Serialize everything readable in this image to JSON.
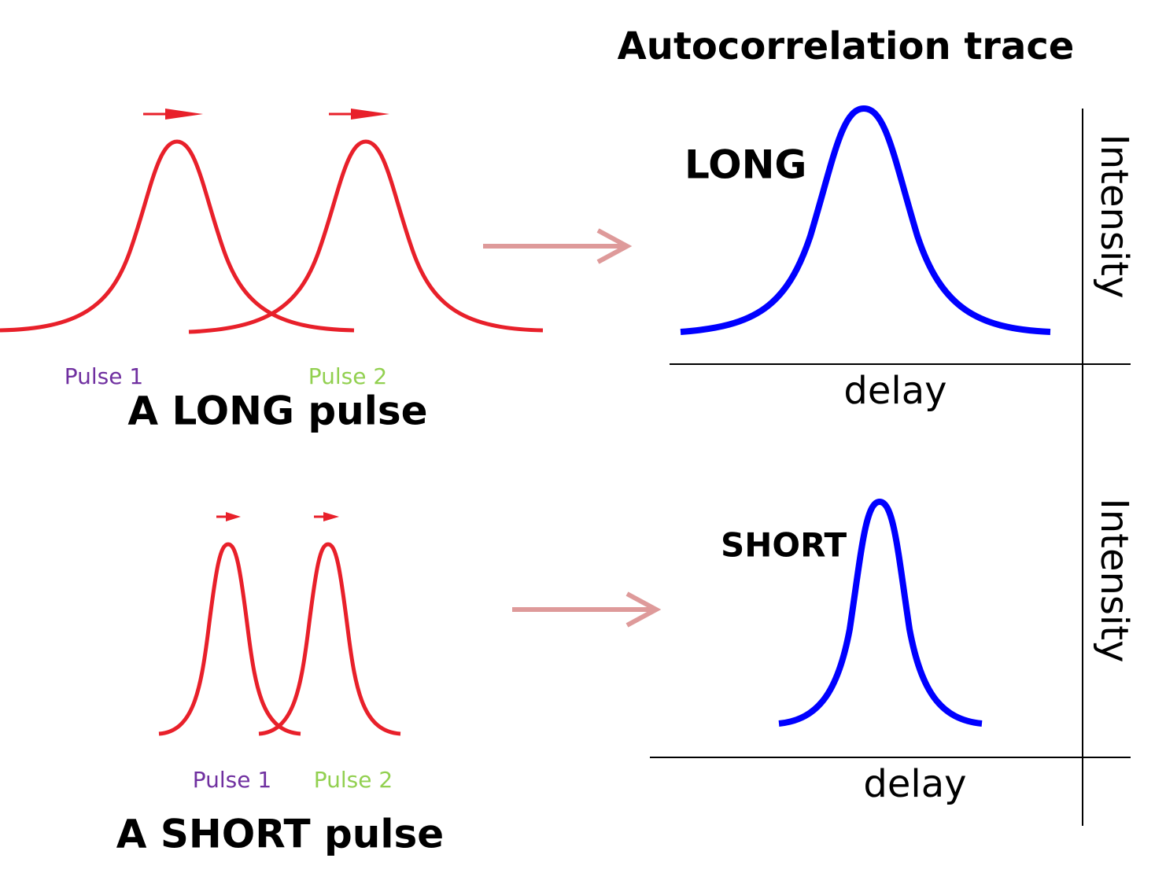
{
  "title": "Autocorrelation trace",
  "long": {
    "pulse_labels": [
      "Pulse 1",
      "Pulse 2"
    ],
    "caption": "A LONG pulse",
    "trace_label": "LONG",
    "x_label": "delay",
    "y_label": "Intensity"
  },
  "short": {
    "pulse_labels": [
      "Pulse 1",
      "Pulse 2"
    ],
    "caption": "A SHORT pulse",
    "trace_label": "SHORT",
    "x_label": "delay",
    "y_label": "Intensity"
  }
}
